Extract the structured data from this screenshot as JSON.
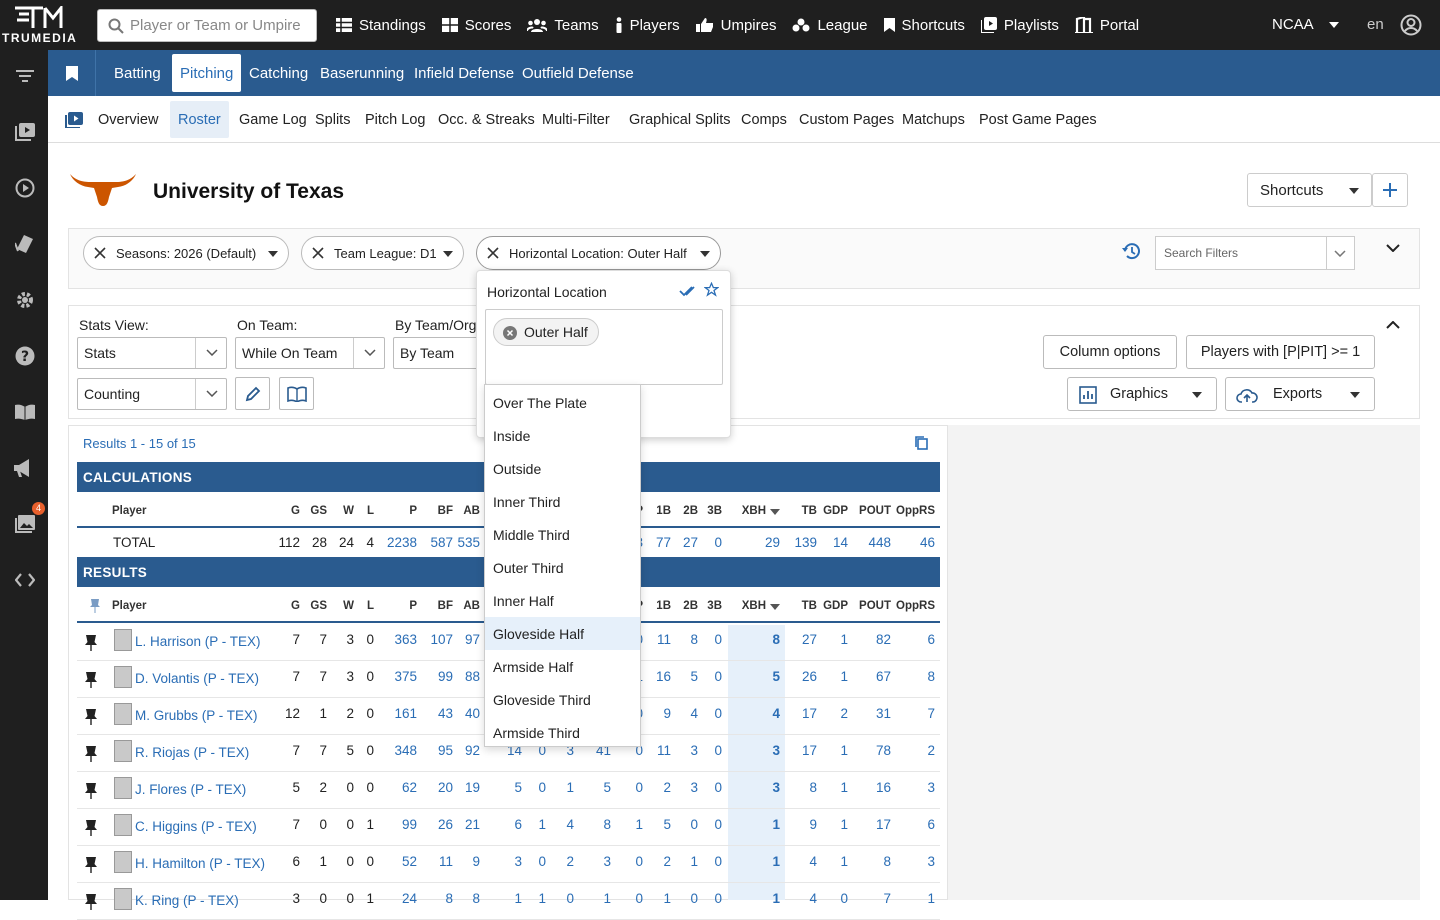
{
  "app": {
    "logo_text": "TRUMEDIA"
  },
  "search": {
    "placeholder": "Player or Team or Umpire"
  },
  "topnav": [
    {
      "label": "Standings",
      "icon": "table-icon"
    },
    {
      "label": "Scores",
      "icon": "grid-icon"
    },
    {
      "label": "Teams",
      "icon": "users-icon"
    },
    {
      "label": "Players",
      "icon": "person-icon"
    },
    {
      "label": "Umpires",
      "icon": "thumbs-icon"
    },
    {
      "label": "League",
      "icon": "league-icon"
    },
    {
      "label": "Shortcuts",
      "icon": "bookmark-icon"
    },
    {
      "label": "Playlists",
      "icon": "playlist-icon"
    },
    {
      "label": "Portal",
      "icon": "portal-icon"
    }
  ],
  "league_select": "NCAA",
  "language": "en",
  "badge_count": "4",
  "main_tabs": [
    "Batting",
    "Pitching",
    "Catching",
    "Baserunning",
    "Infield Defense",
    "Outfield Defense"
  ],
  "active_main_tab": "Pitching",
  "sub_tabs": [
    "Overview",
    "Roster",
    "Game Log",
    "Splits",
    "Pitch Log",
    "Occ. & Streaks",
    "Multi-Filter",
    "Graphical Splits",
    "Comps",
    "Custom Pages",
    "Matchups",
    "Post Game Pages"
  ],
  "active_sub_tab": "Roster",
  "team": {
    "name": "University of Texas",
    "logo_color": "#cc5500"
  },
  "shortcuts_button": "Shortcuts",
  "filters": {
    "chips": [
      "Seasons: 2026 (Default)",
      "Team League: D1",
      "Horizontal Location: Outer Half"
    ],
    "search_placeholder": "Search Filters"
  },
  "options": {
    "stats_view_label": "Stats View:",
    "stats_view_value": "Stats",
    "on_team_label": "On Team:",
    "on_team_value": "While On Team",
    "by_team_label": "By Team/Org",
    "by_team_value": "By Team",
    "stat_type_value": "Counting",
    "column_options": "Column options",
    "players_with": "Players with [P|PIT] >= 1",
    "graphics": "Graphics",
    "exports": "Exports"
  },
  "results": {
    "count_text": "Results 1 - 15 of 15",
    "calc_band": "CALCULATIONS",
    "results_band": "RESULTS",
    "player_header": "Player",
    "left_columns": [
      "G",
      "GS",
      "W",
      "L",
      "P",
      "BF",
      "AB"
    ],
    "right_columns": [
      "P",
      "1B",
      "2B",
      "3B",
      "XBH",
      "TB",
      "GDP",
      "POUT",
      "OppRS"
    ],
    "sort_column": "XBH",
    "total": {
      "label": "TOTAL",
      "left": [
        "112",
        "28",
        "24",
        "4",
        "2238",
        "587",
        "535"
      ],
      "right": [
        "3",
        "77",
        "27",
        "0",
        "29",
        "139",
        "14",
        "448",
        "46"
      ]
    },
    "rows": [
      {
        "name": "L. Harrison (P - TEX)",
        "left": [
          "7",
          "7",
          "3",
          "0",
          "363",
          "107",
          "97"
        ],
        "right": [
          "0",
          "11",
          "8",
          "0",
          "8",
          "27",
          "1",
          "82",
          "6"
        ]
      },
      {
        "name": "D. Volantis (P - TEX)",
        "left": [
          "7",
          "7",
          "3",
          "0",
          "375",
          "99",
          "88"
        ],
        "right": [
          "1",
          "16",
          "5",
          "0",
          "5",
          "26",
          "1",
          "67",
          "8"
        ]
      },
      {
        "name": "M. Grubbs (P - TEX)",
        "left": [
          "12",
          "1",
          "2",
          "0",
          "161",
          "43",
          "40"
        ],
        "right": [
          "0",
          "9",
          "4",
          "0",
          "4",
          "17",
          "2",
          "31",
          "7"
        ]
      },
      {
        "name": "R. Riojas (P - TEX)",
        "left": [
          "7",
          "7",
          "5",
          "0",
          "348",
          "95",
          "92"
        ],
        "mid": [
          "14",
          "0",
          "3",
          "41"
        ],
        "right": [
          "0",
          "11",
          "3",
          "0",
          "3",
          "17",
          "1",
          "78",
          "2"
        ]
      },
      {
        "name": "J. Flores (P - TEX)",
        "left": [
          "5",
          "2",
          "0",
          "0",
          "62",
          "20",
          "19"
        ],
        "mid": [
          "5",
          "0",
          "1",
          "5"
        ],
        "right": [
          "0",
          "2",
          "3",
          "0",
          "3",
          "8",
          "1",
          "16",
          "3"
        ]
      },
      {
        "name": "C. Higgins (P - TEX)",
        "left": [
          "7",
          "0",
          "0",
          "1",
          "99",
          "26",
          "21"
        ],
        "mid": [
          "6",
          "1",
          "4",
          "8"
        ],
        "right": [
          "1",
          "5",
          "0",
          "0",
          "1",
          "9",
          "1",
          "17",
          "6"
        ]
      },
      {
        "name": "H. Hamilton (P - TEX)",
        "left": [
          "6",
          "1",
          "0",
          "0",
          "52",
          "11",
          "9"
        ],
        "mid": [
          "3",
          "0",
          "2",
          "3"
        ],
        "right": [
          "0",
          "2",
          "1",
          "0",
          "1",
          "4",
          "1",
          "8",
          "3"
        ]
      },
      {
        "name": "K. Ring (P - TEX)",
        "left": [
          "3",
          "0",
          "0",
          "1",
          "24",
          "8",
          "8"
        ],
        "mid": [
          "1",
          "1",
          "0",
          "1"
        ],
        "right": [
          "0",
          "1",
          "0",
          "0",
          "1",
          "4",
          "0",
          "7",
          "1"
        ]
      }
    ]
  },
  "dropdown": {
    "title": "Horizontal Location",
    "selected_tag": "Outer Half",
    "options": [
      "Over The Plate",
      "Inside",
      "Outside",
      "Inner Third",
      "Middle Third",
      "Outer Third",
      "Inner Half",
      "Gloveside Half",
      "Armside Half",
      "Gloveside Third",
      "Armside Third"
    ],
    "highlighted": "Gloveside Half"
  }
}
